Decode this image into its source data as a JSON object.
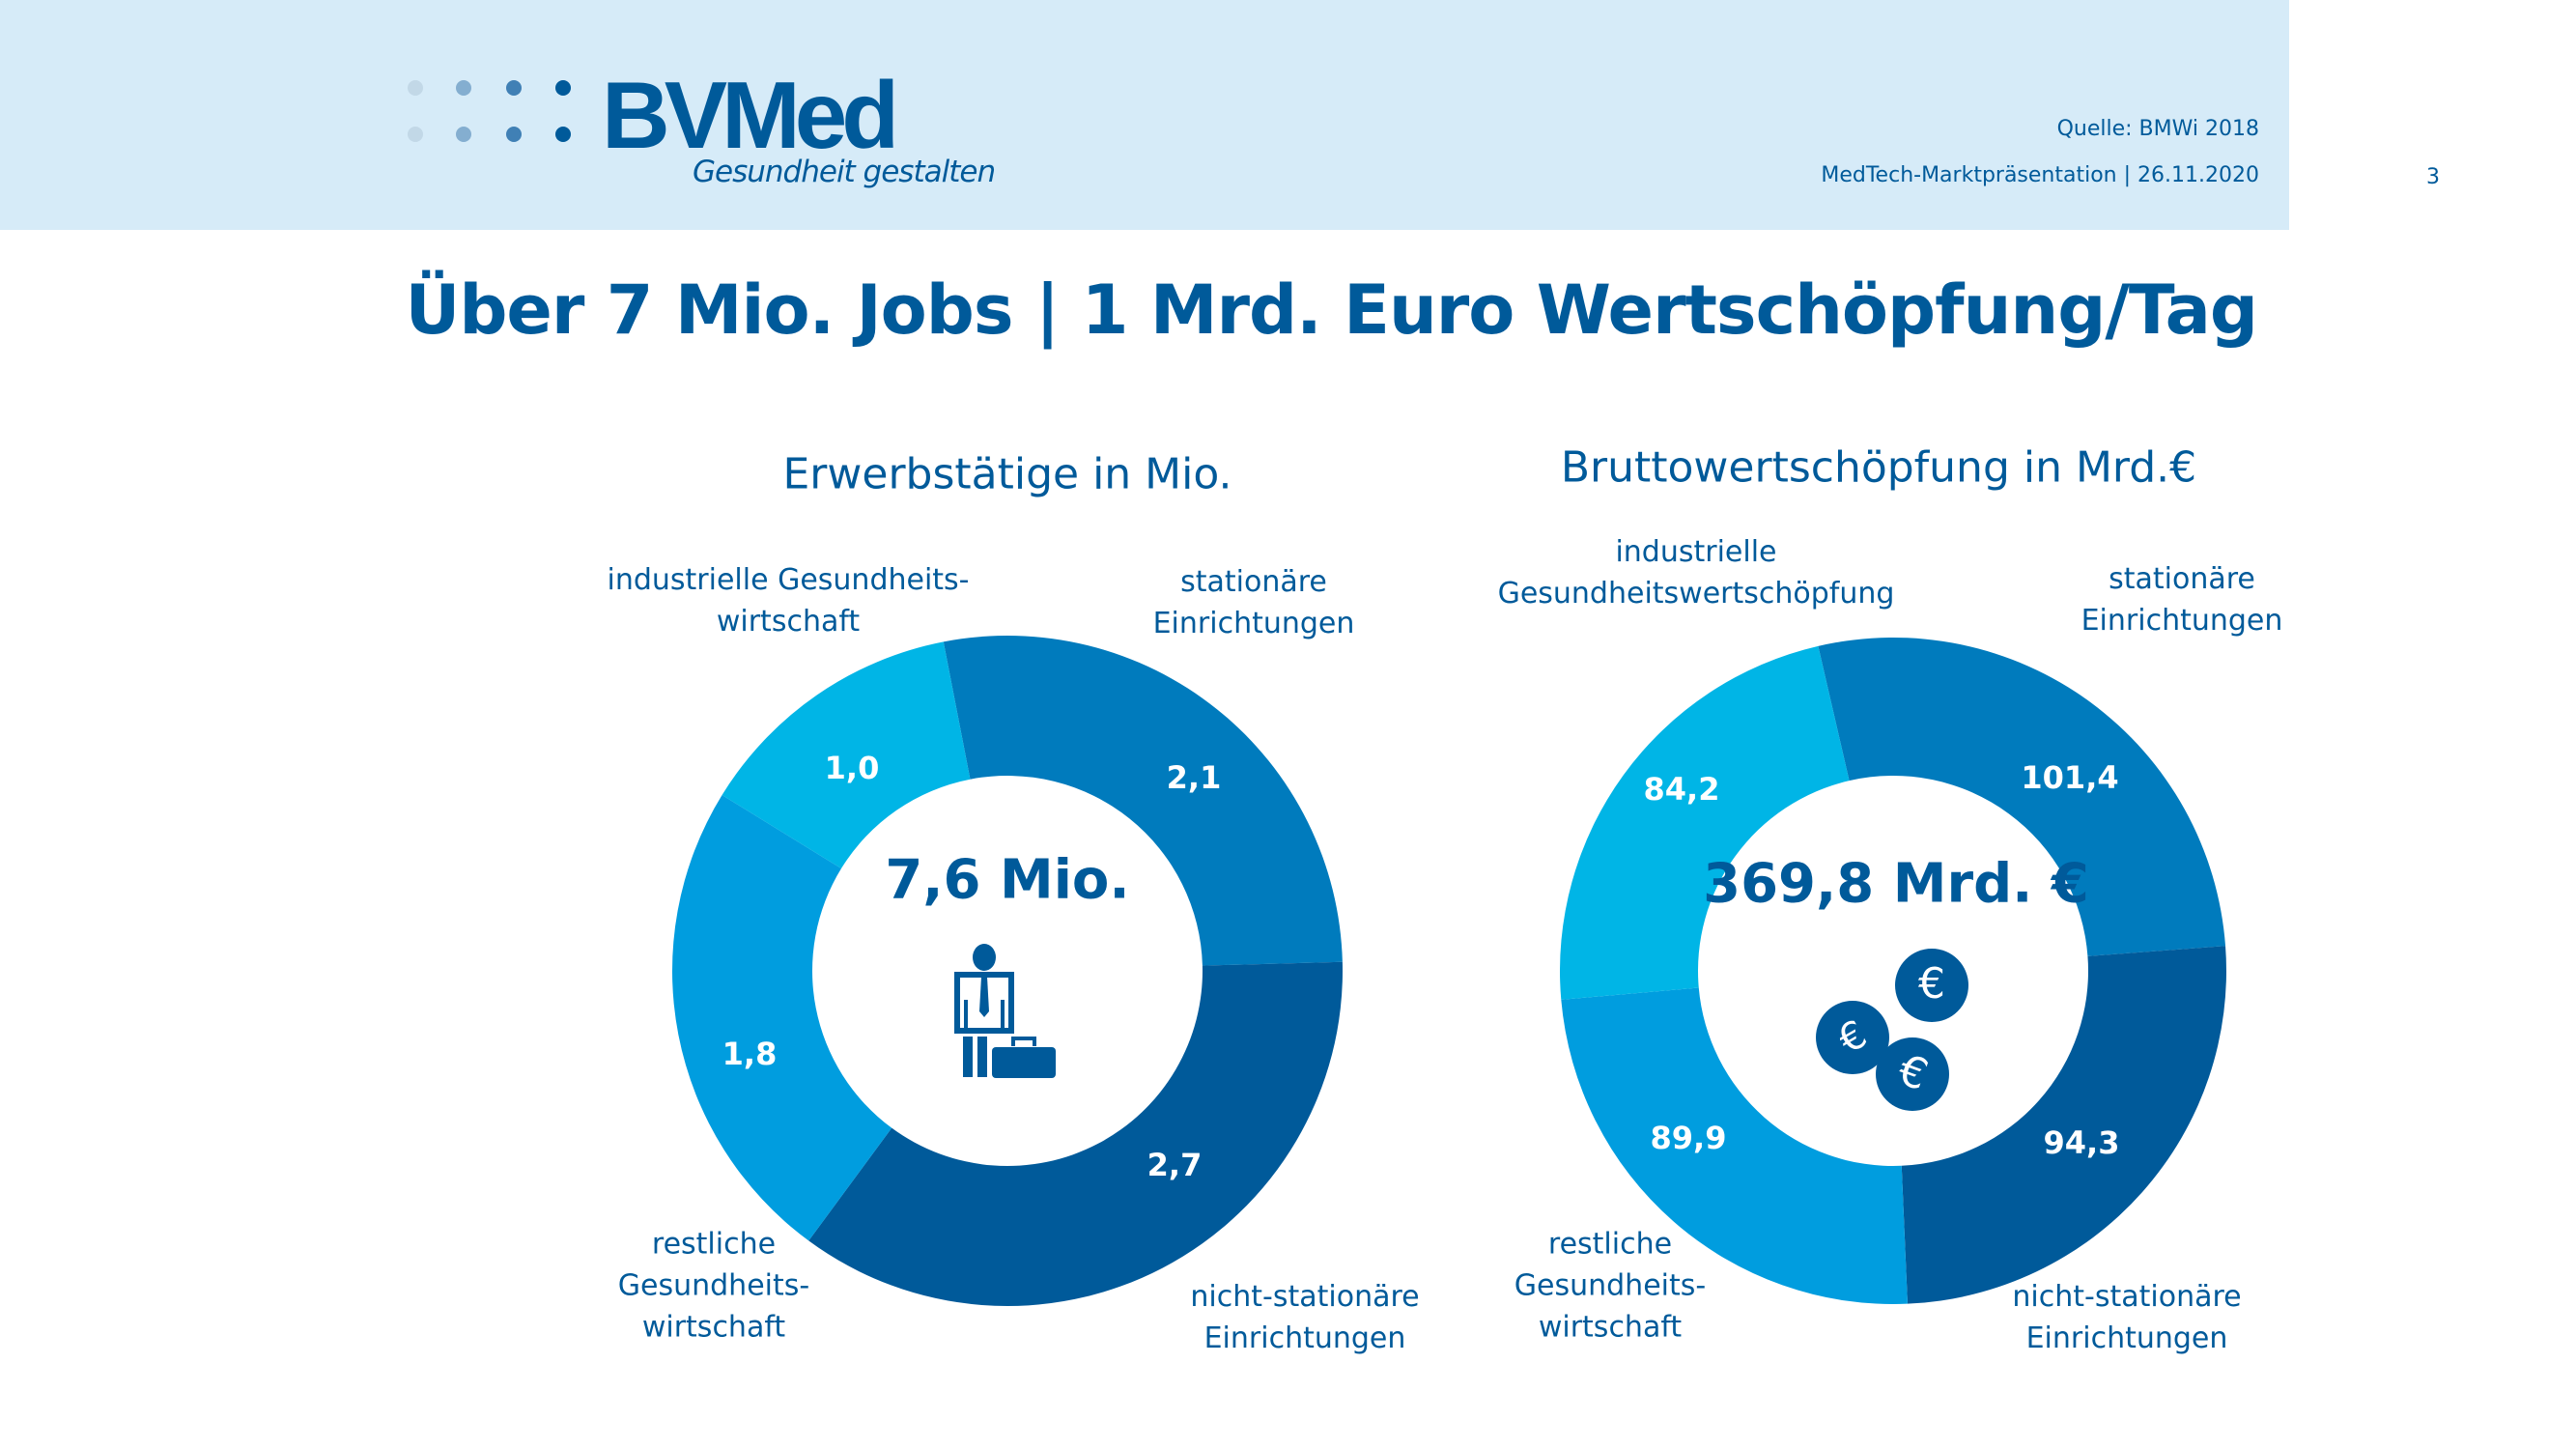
{
  "header": {
    "logo_text": "BVMed",
    "tagline": "Gesundheit gestalten",
    "source": "Quelle: BMWi 2018",
    "presentation": "MedTech-Marktpräsentation |  26.11.2020",
    "page_number": "3"
  },
  "title": "Über 7 Mio. Jobs | 1 Mrd. Euro Wertschöpfung/Tag",
  "colors": {
    "header_bg": "#d6ebf8",
    "text": "#005a9a",
    "industrial": "#00b5e6",
    "stationary": "#007bbd",
    "non_stationary": "#005a9a",
    "rest": "#009ddf"
  },
  "chart_data": [
    {
      "type": "pie",
      "title": "Erwerbstätige in Mio.",
      "center_label": "7,6 Mio.",
      "center_icon": "businessman-with-briefcase-icon",
      "categories": [
        "stationäre Einrichtungen",
        "nicht-stationäre Einrichtungen",
        "restliche Gesundheitswirtschaft",
        "industrielle Gesundheitswirtschaft"
      ],
      "label_lines": [
        [
          "stationäre",
          "Einrichtungen"
        ],
        [
          "nicht-stationäre",
          "Einrichtungen"
        ],
        [
          "restliche",
          "Gesundheits-",
          "wirtschaft"
        ],
        [
          "industrielle Gesundheits-",
          "wirtschaft"
        ]
      ],
      "values": [
        2.1,
        2.7,
        1.8,
        1.0
      ],
      "value_labels": [
        "2,1",
        "2,7",
        "1,8",
        "1,0"
      ]
    },
    {
      "type": "pie",
      "title": "Bruttowertschöpfung in Mrd.€",
      "center_label": "369,8 Mrd. €",
      "center_icon": "euro-coins-icon",
      "categories": [
        "stationäre Einrichtungen",
        "nicht-stationäre Einrichtungen",
        "restliche Gesundheitswirtschaft",
        "industrielle Gesundheitswertschöpfung"
      ],
      "label_lines": [
        [
          "stationäre",
          "Einrichtungen"
        ],
        [
          "nicht-stationäre",
          "Einrichtungen"
        ],
        [
          "restliche",
          "Gesundheits-",
          "wirtschaft"
        ],
        [
          "industrielle",
          "Gesundheitswertschöpfung"
        ]
      ],
      "values": [
        101.4,
        94.3,
        89.9,
        84.2
      ],
      "value_labels": [
        "101,4",
        "94,3",
        "89,9",
        "84,2"
      ]
    }
  ]
}
